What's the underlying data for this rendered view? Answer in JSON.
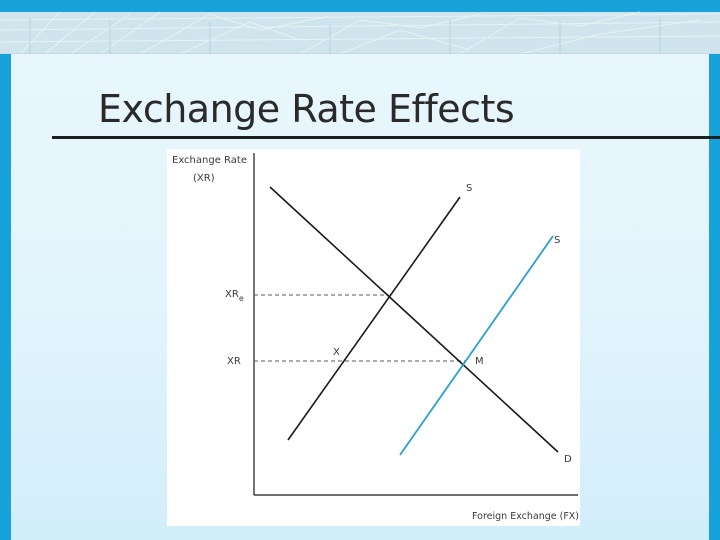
{
  "slide": {
    "title": "Exchange Rate Effects"
  },
  "colors": {
    "frame": "#17a3da",
    "background": "#e2f4fc",
    "shifted_supply": "#2aa0cf",
    "curves": "#1a1a1a"
  },
  "diagram": {
    "y_axis_label_line1": "Exchange Rate",
    "y_axis_label_line2": "(XR)",
    "x_axis_label": "Foreign Exchange (FX)",
    "tick_xre": "XR",
    "tick_xre_subscript": "e",
    "tick_xr": "XR",
    "supply_label": "S",
    "shifted_supply_label": "S",
    "demand_label": "D",
    "point_x_label": "X",
    "point_m_label": "M"
  }
}
